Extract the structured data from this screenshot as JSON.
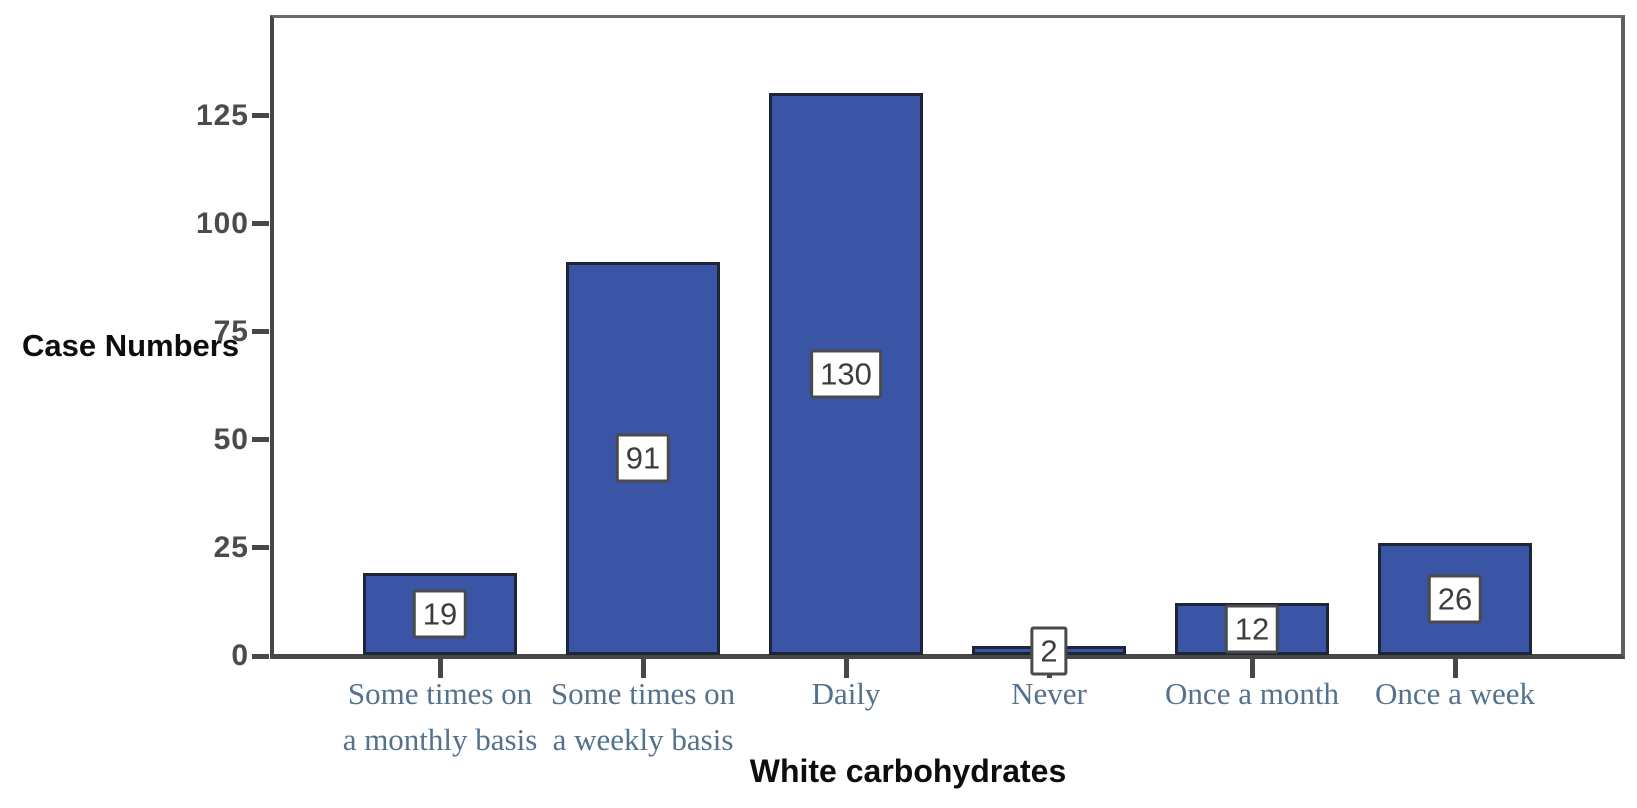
{
  "chart_data": {
    "type": "bar",
    "title": "",
    "xlabel": "White carbohydrates",
    "ylabel": "Case Numbers",
    "categories": [
      [
        "Some times on",
        "a monthly basis"
      ],
      [
        "Some times on",
        "a weekly basis"
      ],
      [
        "Daily"
      ],
      [
        "Never"
      ],
      [
        "Once a month"
      ],
      [
        "Once a week"
      ]
    ],
    "values": [
      19,
      91,
      130,
      2,
      12,
      26
    ],
    "bar_value_labels": [
      "19",
      "91",
      "130",
      "2",
      "12",
      "26"
    ],
    "yticks": [
      0,
      25,
      50,
      75,
      100,
      125
    ],
    "ylim": [
      0,
      148
    ],
    "grid": false,
    "legend": null,
    "layout_hints": {
      "bar_value_labels_position": "boxed, centered at vertical middle of each bar",
      "category_label_lines": "first two categories wrap to two lines",
      "frame": "full box around plot area, no gridlines"
    },
    "colors": {
      "bar_fill": "#3b55a6",
      "bar_border": "#1e2636",
      "axis": "#474747",
      "tick_label": "#4b4b4b",
      "category_label": "#54718e",
      "value_label_text": "#3d3d3d",
      "value_label_border": "#4a4a4a",
      "value_label_bg": "#ffffff",
      "axis_title": "#0d0d0d"
    }
  }
}
